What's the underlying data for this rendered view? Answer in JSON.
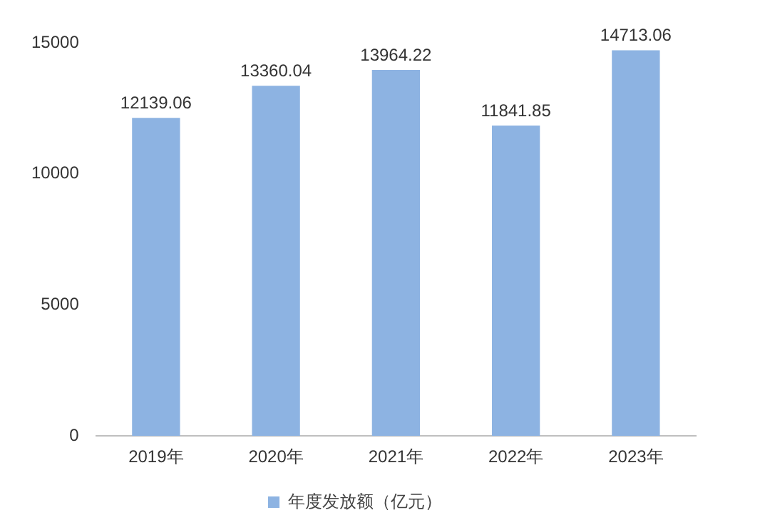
{
  "chart_data": {
    "type": "bar",
    "categories": [
      "2019年",
      "2020年",
      "2021年",
      "2022年",
      "2023年"
    ],
    "series": [
      {
        "name": "年度发放额（亿元）",
        "color": "#8db3e2",
        "values": [
          12139.06,
          13360.04,
          13964.22,
          11841.85,
          14713.06
        ]
      }
    ],
    "ylim": [
      0,
      15000
    ],
    "yticks": [
      0,
      5000,
      10000,
      15000
    ],
    "data_labels": true,
    "grid": false,
    "legend": "bottom"
  }
}
